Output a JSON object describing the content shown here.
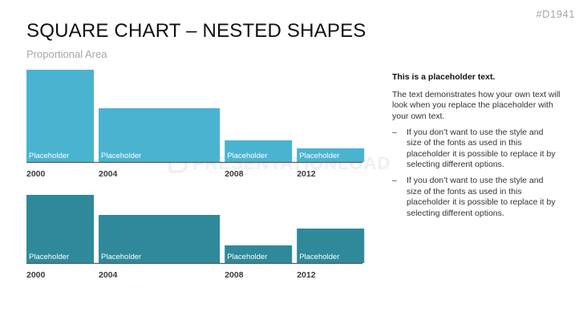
{
  "slide_id": "#D1941",
  "title": "SQUARE CHART – NESTED SHAPES",
  "subtitle": "Proportional Area",
  "watermark": "PRESENTATIONLOAD",
  "text_box": {
    "heading": "This is a placeholder text.",
    "paragraph": "The text demonstrates how your own text will look when you replace the placeholder with your own text.",
    "bullets": [
      "If you don’t want to use the style and size of the fonts as used in this placeholder it is possible to replace it by selecting different options.",
      "If you don’t want to use the style and size of the fonts as used in this placeholder it is possible to replace it by selecting different options."
    ],
    "bullet_marker": "–"
  },
  "colors": {
    "top_series": "#4ab3d0",
    "bottom_series": "#2e8a9a",
    "axis": "#595959",
    "year_label": "#3a3a3a"
  },
  "chart_data": [
    {
      "type": "bar",
      "categories": [
        "2000",
        "2004",
        "2008",
        "2012"
      ],
      "values": [
        115,
        67,
        27,
        17
      ],
      "relative_widths": [
        1.0,
        1.8,
        1.0,
        1.0
      ],
      "bar_label": "Placeholder",
      "color": "#4ab3d0"
    },
    {
      "type": "bar",
      "categories": [
        "2000",
        "2004",
        "2008",
        "2012"
      ],
      "values": [
        85,
        60,
        22,
        43
      ],
      "relative_widths": [
        1.0,
        1.8,
        1.0,
        1.0
      ],
      "bar_label": "Placeholder",
      "color": "#2e8a9a"
    }
  ]
}
